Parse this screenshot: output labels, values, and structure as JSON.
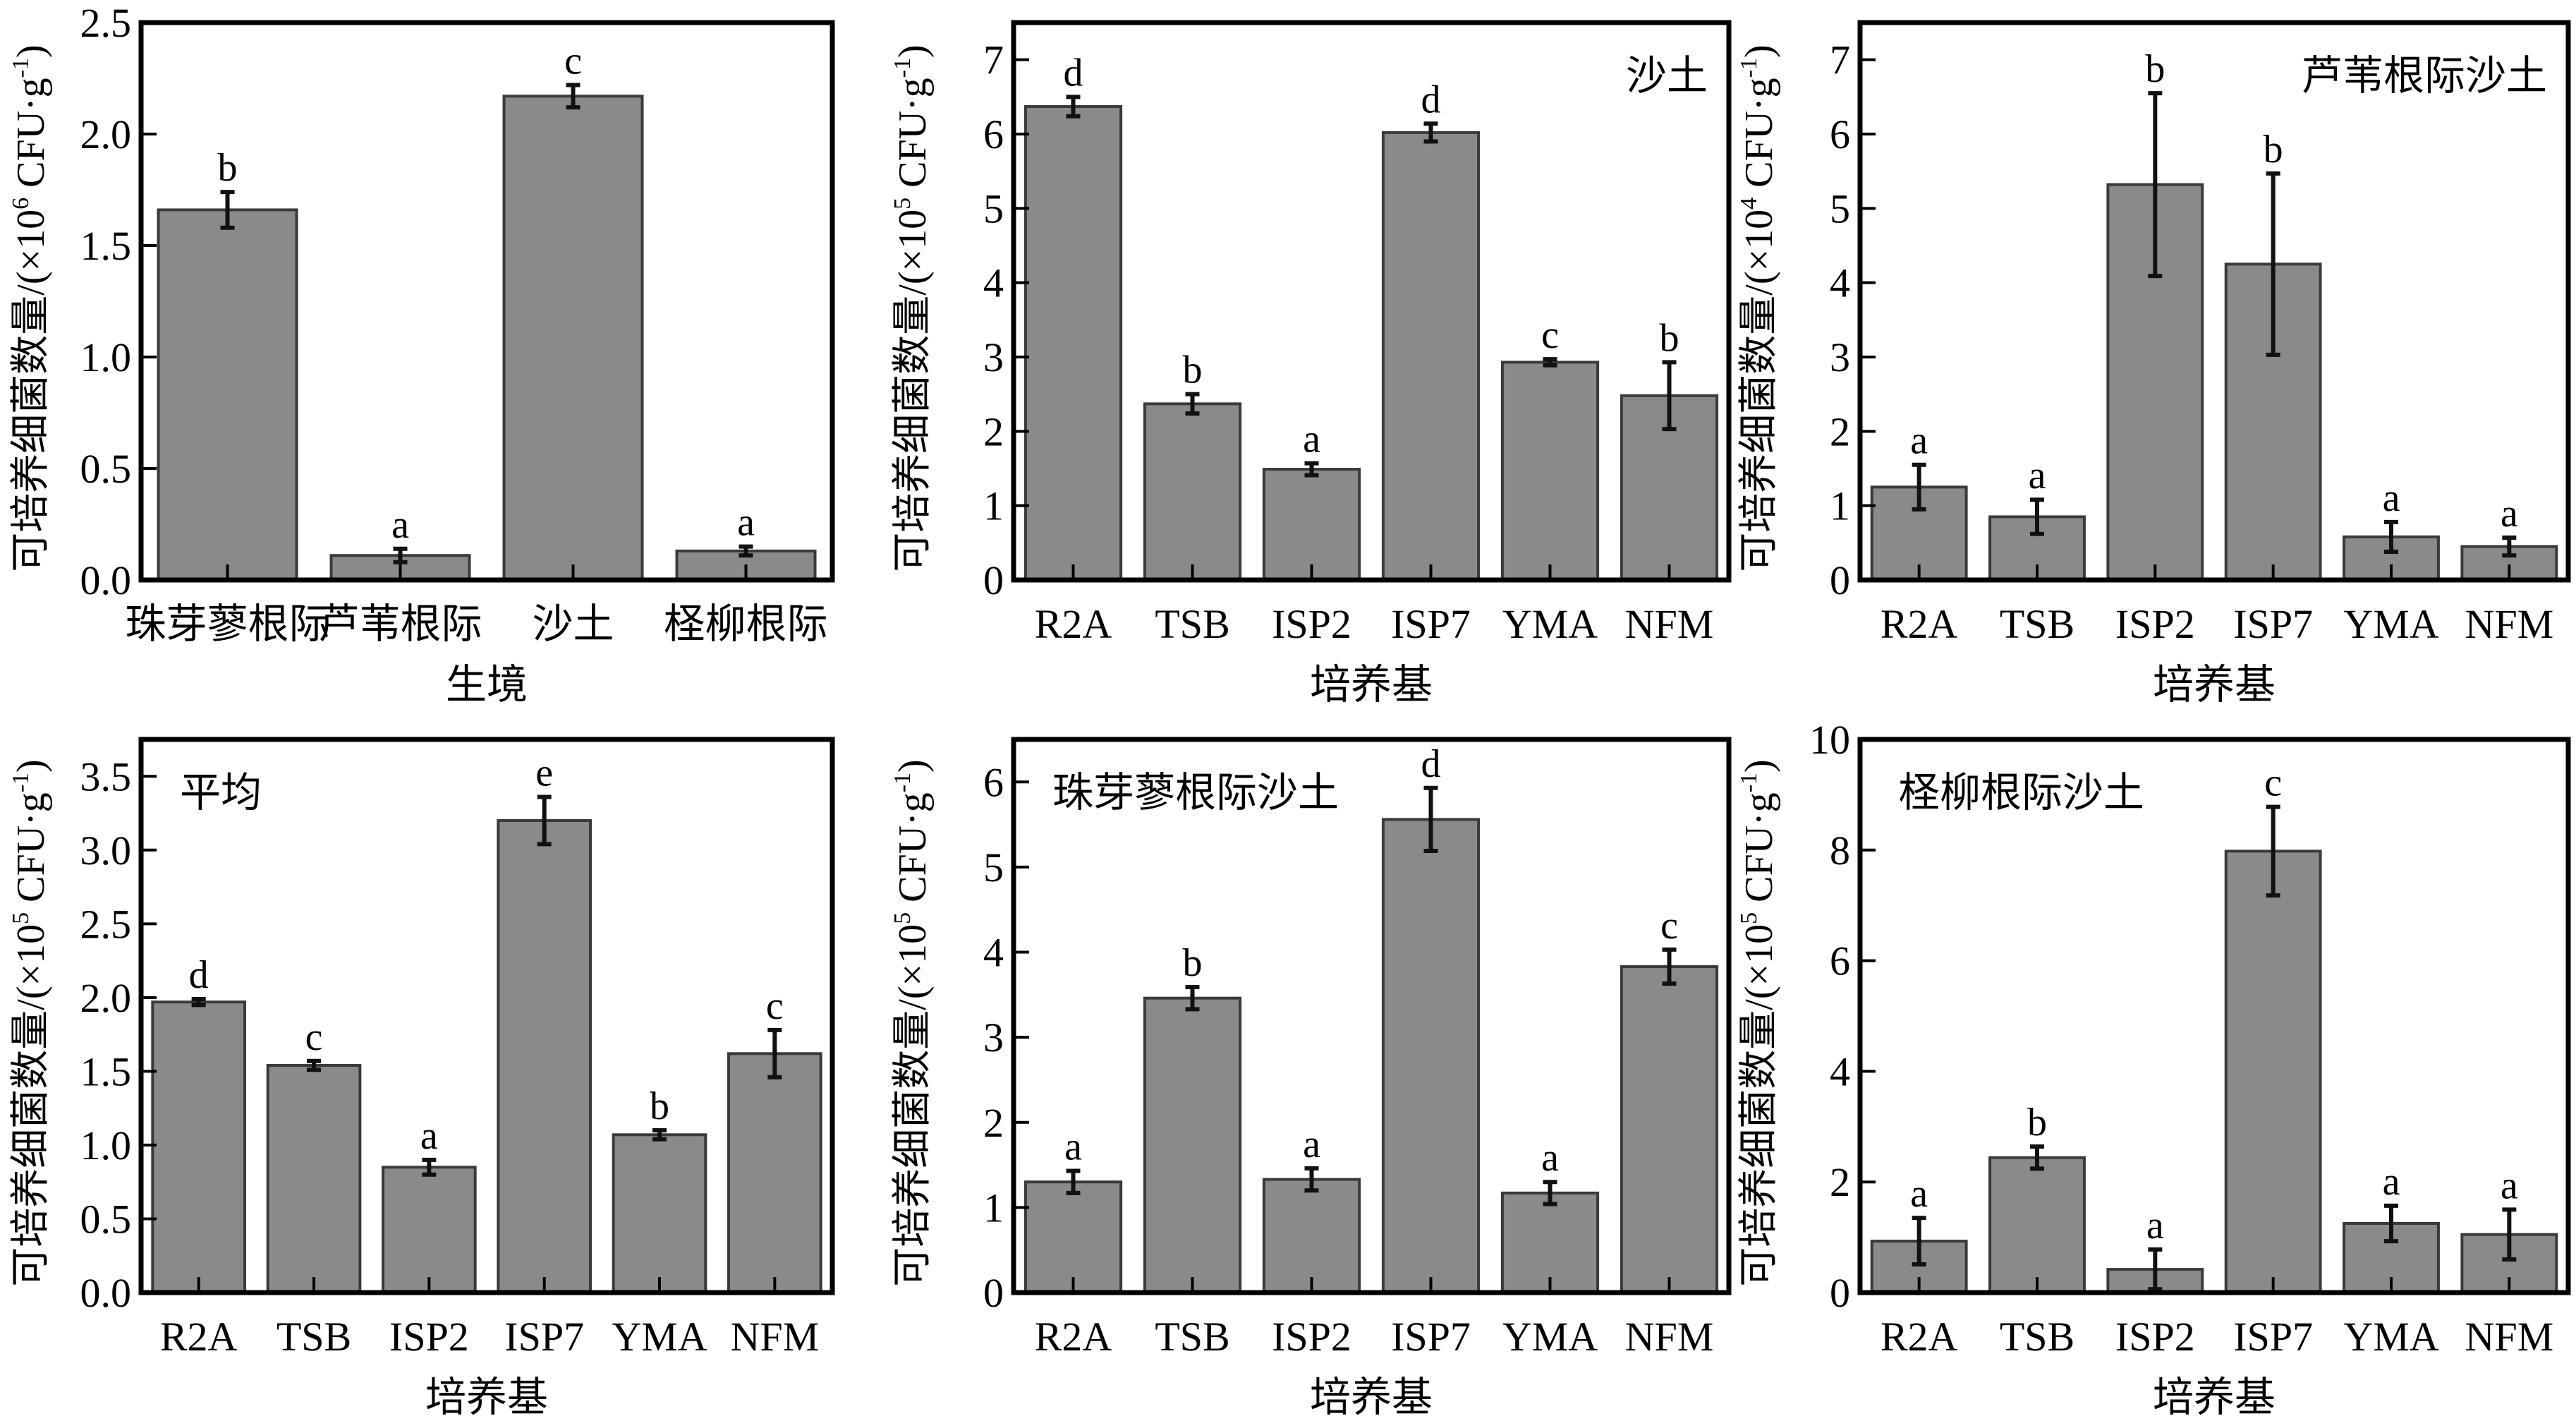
{
  "figure": {
    "bar_color": "#8a8a8a",
    "bar_edge_color": "#3a3a3a",
    "axis_color": "#000000"
  },
  "chart_data": [
    {
      "id": "habitat",
      "type": "bar",
      "title": "",
      "annotation": "",
      "xlabel": "生境",
      "ylabel": "可培养细菌数量/(×10⁶ CFU·g⁻¹)",
      "ylabel_parts": {
        "main": "可培养细菌数量/(×10",
        "exp": "6",
        "mid": " CFU·g",
        "exp2": "-1",
        "end": ")"
      },
      "categories": [
        "珠芽蓼根际",
        "芦苇根际",
        "沙土",
        "柽柳根际"
      ],
      "values": [
        1.66,
        0.11,
        2.17,
        0.13
      ],
      "errors": [
        0.08,
        0.03,
        0.05,
        0.02
      ],
      "letters": [
        "b",
        "a",
        "c",
        "a"
      ],
      "ylim": [
        0,
        2.5
      ],
      "yticks": [
        0.0,
        0.5,
        1.0,
        1.5,
        2.0,
        2.5
      ],
      "ytick_labels": [
        "0.0",
        "0.5",
        "1.0",
        "1.5",
        "2.0",
        "2.5"
      ],
      "grid": false
    },
    {
      "id": "sandy-soil",
      "type": "bar",
      "title": "",
      "annotation": "沙土",
      "annotation_position": "top-right",
      "xlabel": "培养基",
      "ylabel": "可培养细菌数量/(×10⁵ CFU·g⁻¹)",
      "ylabel_parts": {
        "main": "可培养细菌数量/(×10",
        "exp": "5",
        "mid": " CFU·g",
        "exp2": "-1",
        "end": ")"
      },
      "categories": [
        "R2A",
        "TSB",
        "ISP2",
        "ISP7",
        "YMA",
        "NFM"
      ],
      "values": [
        6.37,
        2.37,
        1.49,
        6.02,
        2.93,
        2.48
      ],
      "errors": [
        0.13,
        0.13,
        0.08,
        0.12,
        0.04,
        0.45
      ],
      "letters": [
        "d",
        "b",
        "a",
        "d",
        "c",
        "b"
      ],
      "ylim": [
        0,
        7.5
      ],
      "yticks": [
        0,
        1,
        2,
        3,
        4,
        5,
        6,
        7
      ],
      "ytick_labels": [
        "0",
        "1",
        "2",
        "3",
        "4",
        "5",
        "6",
        "7"
      ],
      "grid": false
    },
    {
      "id": "reed-rhizosphere",
      "type": "bar",
      "title": "",
      "annotation": "芦苇根际沙土",
      "annotation_position": "top-right",
      "xlabel": "培养基",
      "ylabel": "可培养细菌数量/(×10⁴ CFU·g⁻¹)",
      "ylabel_parts": {
        "main": "可培养细菌数量/(×10",
        "exp": "4",
        "mid": " CFU·g",
        "exp2": "-1",
        "end": ")"
      },
      "categories": [
        "R2A",
        "TSB",
        "ISP2",
        "ISP7",
        "YMA",
        "NFM"
      ],
      "values": [
        1.25,
        0.85,
        5.32,
        4.25,
        0.58,
        0.45
      ],
      "errors": [
        0.3,
        0.23,
        1.23,
        1.22,
        0.2,
        0.12
      ],
      "letters": [
        "a",
        "a",
        "b",
        "b",
        "a",
        "a"
      ],
      "ylim": [
        0,
        7.5
      ],
      "yticks": [
        0,
        1,
        2,
        3,
        4,
        5,
        6,
        7
      ],
      "ytick_labels": [
        "0",
        "1",
        "2",
        "3",
        "4",
        "5",
        "6",
        "7"
      ],
      "grid": false
    },
    {
      "id": "average",
      "type": "bar",
      "title": "",
      "annotation": "平均",
      "annotation_position": "top-left",
      "xlabel": "培养基",
      "ylabel": "可培养细菌数量/(×10⁵ CFU·g⁻¹)",
      "ylabel_parts": {
        "main": "可培养细菌数量/(×10",
        "exp": "5",
        "mid": " CFU·g",
        "exp2": "-1",
        "end": ")"
      },
      "categories": [
        "R2A",
        "TSB",
        "ISP2",
        "ISP7",
        "YMA",
        "NFM"
      ],
      "values": [
        1.97,
        1.54,
        0.85,
        3.2,
        1.07,
        1.62
      ],
      "errors": [
        0.02,
        0.03,
        0.05,
        0.16,
        0.03,
        0.16
      ],
      "letters": [
        "d",
        "c",
        "a",
        "e",
        "b",
        "c"
      ],
      "ylim": [
        0,
        3.75
      ],
      "yticks": [
        0.0,
        0.5,
        1.0,
        1.5,
        2.0,
        2.5,
        3.0,
        3.5
      ],
      "ytick_labels": [
        "0.0",
        "0.5",
        "1.0",
        "1.5",
        "2.0",
        "2.5",
        "3.0",
        "3.5"
      ],
      "grid": false
    },
    {
      "id": "polygonum-rhizosphere",
      "type": "bar",
      "title": "",
      "annotation": "珠芽蓼根际沙土",
      "annotation_position": "top-left",
      "xlabel": "培养基",
      "ylabel": "可培养细菌数量/(×10⁵ CFU·g⁻¹)",
      "ylabel_parts": {
        "main": "可培养细菌数量/(×10",
        "exp": "5",
        "mid": " CFU·g",
        "exp2": "-1",
        "end": ")"
      },
      "categories": [
        "R2A",
        "TSB",
        "ISP2",
        "ISP7",
        "YMA",
        "NFM"
      ],
      "values": [
        1.3,
        3.46,
        1.33,
        5.56,
        1.17,
        3.83
      ],
      "errors": [
        0.13,
        0.13,
        0.13,
        0.37,
        0.13,
        0.2
      ],
      "letters": [
        "a",
        "b",
        "a",
        "d",
        "a",
        "c"
      ],
      "ylim": [
        0,
        6.5
      ],
      "yticks": [
        0,
        1,
        2,
        3,
        4,
        5,
        6
      ],
      "ytick_labels": [
        "0",
        "1",
        "2",
        "3",
        "4",
        "5",
        "6"
      ],
      "grid": false
    },
    {
      "id": "tamarix-rhizosphere",
      "type": "bar",
      "title": "",
      "annotation": "柽柳根际沙土",
      "annotation_position": "top-left",
      "xlabel": "培养基",
      "ylabel": "可培养细菌数量/(×10⁵ CFU·g⁻¹)",
      "ylabel_parts": {
        "main": "可培养细菌数量/(×10",
        "exp": "5",
        "mid": " CFU·g",
        "exp2": "-1",
        "end": ")"
      },
      "categories": [
        "R2A",
        "TSB",
        "ISP2",
        "ISP7",
        "YMA",
        "NFM"
      ],
      "values": [
        0.93,
        2.44,
        0.42,
        7.98,
        1.25,
        1.05
      ],
      "errors": [
        0.42,
        0.2,
        0.36,
        0.8,
        0.32,
        0.45
      ],
      "letters": [
        "a",
        "b",
        "a",
        "c",
        "a",
        "a"
      ],
      "ylim": [
        0,
        10
      ],
      "yticks": [
        0,
        2,
        4,
        6,
        8,
        10
      ],
      "ytick_labels": [
        "0",
        "2",
        "4",
        "6",
        "8",
        "10"
      ],
      "grid": false
    }
  ]
}
